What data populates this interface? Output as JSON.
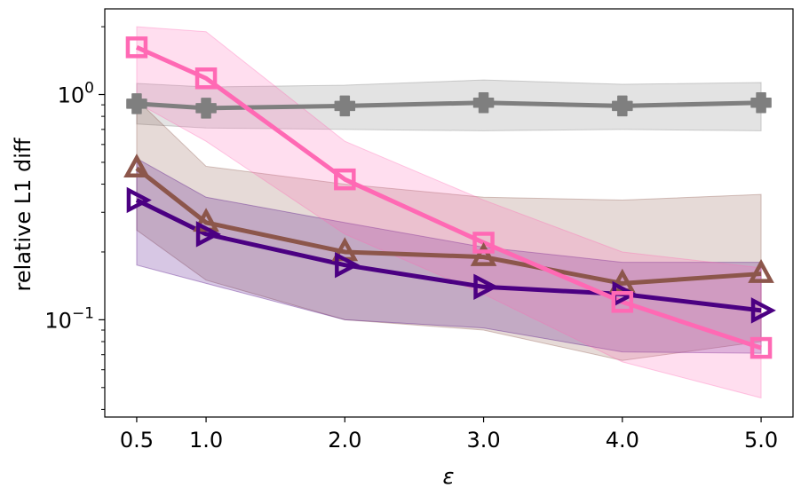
{
  "chart_data": {
    "type": "line",
    "title": "",
    "xlabel": "ε",
    "ylabel": "relative L1 diff",
    "yscale": "log",
    "xlim": [
      0.27,
      5.23
    ],
    "ylim": [
      0.037,
      2.4
    ],
    "grid": false,
    "x": [
      0.5,
      1.0,
      2.0,
      3.0,
      4.0,
      5.0
    ],
    "x_tick_labels": [
      "0.5",
      "1.0",
      "2.0",
      "3.0",
      "4.0",
      "5.0"
    ],
    "y_major_ticks": [
      {
        "value": 1.0,
        "base": "10",
        "exponent": "0"
      },
      {
        "value": 0.1,
        "base": "10",
        "exponent": "−1"
      }
    ],
    "y_minor_ticks": [
      0.04,
      0.05,
      0.06,
      0.07,
      0.08,
      0.09,
      0.2,
      0.3,
      0.4,
      0.5,
      0.6,
      0.7,
      0.8,
      0.9,
      2.0
    ],
    "series": [
      {
        "name": "gray-plus",
        "marker": "plus",
        "color": "#7f7f7f",
        "values": [
          0.91,
          0.87,
          0.89,
          0.92,
          0.89,
          0.92
        ],
        "lower": [
          0.74,
          0.71,
          0.7,
          0.69,
          0.7,
          0.69
        ],
        "upper": [
          1.12,
          1.08,
          1.1,
          1.16,
          1.11,
          1.13
        ]
      },
      {
        "name": "brown-triangle",
        "marker": "triangle-up",
        "color": "#8c564b",
        "values": [
          0.47,
          0.27,
          0.2,
          0.19,
          0.145,
          0.16
        ],
        "lower": [
          0.25,
          0.15,
          0.1,
          0.09,
          0.066,
          0.08
        ],
        "upper": [
          0.95,
          0.48,
          0.4,
          0.35,
          0.34,
          0.36
        ]
      },
      {
        "name": "indigo-triangle",
        "marker": "triangle-right",
        "color": "#4b0082",
        "values": [
          0.34,
          0.24,
          0.175,
          0.14,
          0.13,
          0.11
        ],
        "lower": [
          0.175,
          0.145,
          0.1,
          0.092,
          0.072,
          0.071
        ],
        "upper": [
          0.52,
          0.35,
          0.27,
          0.21,
          0.18,
          0.18
        ]
      },
      {
        "name": "pink-square",
        "marker": "square",
        "color": "#ff69b4",
        "values": [
          1.62,
          1.18,
          0.42,
          0.22,
          0.12,
          0.075
        ],
        "lower": [
          0.92,
          0.62,
          0.24,
          0.13,
          0.065,
          0.045
        ],
        "upper": [
          2.0,
          1.9,
          0.62,
          0.34,
          0.2,
          0.17
        ]
      }
    ]
  }
}
